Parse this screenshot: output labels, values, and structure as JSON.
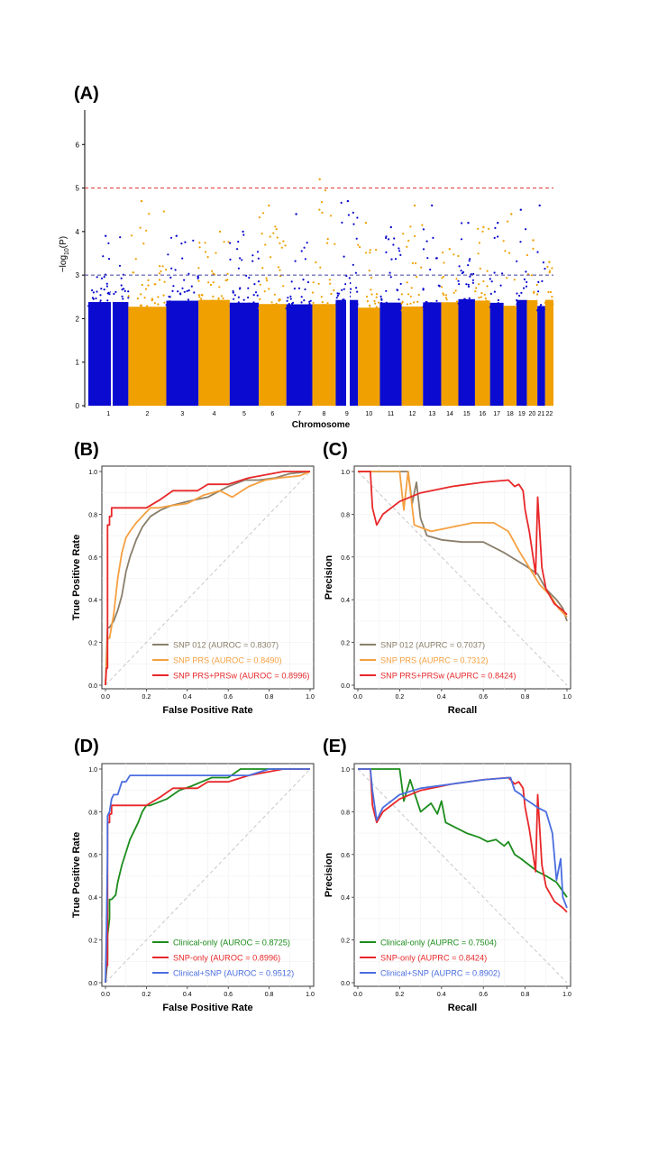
{
  "panel_labels": {
    "a": "(A)",
    "b": "(B)",
    "c": "(C)",
    "d": "(D)",
    "e": "(E)"
  },
  "colors": {
    "blue": "#0a0ad0",
    "orange": "#f0a000",
    "red_threshold": "#e03030",
    "blue_threshold": "#4040a0",
    "grey": "#8a7f6a",
    "light_orange": "#f5a040",
    "red": "#e8282a",
    "green": "#1c8c1c",
    "clinical_blue": "#4a6ee0",
    "diag": "#c8c8c8"
  },
  "chart_data": [
    {
      "type": "scatter",
      "name": "manhattan",
      "xlabel": "Chromosome",
      "ylabel_main": "−log",
      "ylabel_sub": "10",
      "ylabel_tail": "(P)",
      "ylim": [
        0,
        7
      ],
      "yticks": [
        "0",
        "1",
        "2",
        "3",
        "4",
        "5",
        "6"
      ],
      "chromosomes": [
        "1",
        "2",
        "3",
        "4",
        "5",
        "6",
        "7",
        "8",
        "9",
        "10",
        "11",
        "12",
        "13",
        "14",
        "15",
        "16",
        "17",
        "18",
        "19",
        "20",
        "21",
        "22"
      ],
      "chrom_widths": [
        7.7,
        7.3,
        6.2,
        6.0,
        5.6,
        5.3,
        5.0,
        4.5,
        4.3,
        4.2,
        4.2,
        4.1,
        3.5,
        3.3,
        3.2,
        2.9,
        2.6,
        2.5,
        2.0,
        2.0,
        1.5,
        1.6
      ],
      "chrom_colors": [
        "blue",
        "orange"
      ],
      "thresholds": [
        {
          "y": 5,
          "color": "red_threshold"
        },
        {
          "y": 3,
          "color": "blue_threshold"
        }
      ],
      "peaks": [
        {
          "chrom": "1",
          "max": 3.9
        },
        {
          "chrom": "2",
          "max": 4.7
        },
        {
          "chrom": "3",
          "max": 3.9
        },
        {
          "chrom": "4",
          "max": 4.0
        },
        {
          "chrom": "5",
          "max": 4.0
        },
        {
          "chrom": "6",
          "max": 4.6
        },
        {
          "chrom": "7",
          "max": 4.4
        },
        {
          "chrom": "8",
          "max": 5.2
        },
        {
          "chrom": "9",
          "max": 4.7
        },
        {
          "chrom": "10",
          "max": 4.2
        },
        {
          "chrom": "11",
          "max": 4.1
        },
        {
          "chrom": "12",
          "max": 4.6
        },
        {
          "chrom": "13",
          "max": 4.6
        },
        {
          "chrom": "14",
          "max": 3.6
        },
        {
          "chrom": "15",
          "max": 4.2
        },
        {
          "chrom": "16",
          "max": 4.1
        },
        {
          "chrom": "17",
          "max": 4.2
        },
        {
          "chrom": "18",
          "max": 4.4
        },
        {
          "chrom": "19",
          "max": 4.5
        },
        {
          "chrom": "20",
          "max": 3.8
        },
        {
          "chrom": "21",
          "max": 4.6
        },
        {
          "chrom": "22",
          "max": 3.3
        }
      ]
    },
    {
      "type": "line",
      "name": "roc-snp",
      "xlabel": "False Positive Rate",
      "ylabel": "True Positive Rate",
      "xlim": [
        0,
        1
      ],
      "ylim": [
        0,
        1
      ],
      "ticks": [
        "0.0",
        "0.2",
        "0.4",
        "0.6",
        "0.8",
        "1.0"
      ],
      "diagonal": "roc",
      "legend_position": "bottom-right",
      "series": [
        {
          "name": "SNP 012 (AUROC = 0.8307)",
          "color": "grey",
          "x": [
            0,
            0.01,
            0.02,
            0.04,
            0.06,
            0.08,
            0.1,
            0.12,
            0.15,
            0.18,
            0.22,
            0.27,
            0.32,
            0.4,
            0.5,
            0.6,
            0.68,
            0.75,
            0.83,
            0.9,
            1.0
          ],
          "y": [
            0,
            0.27,
            0.27,
            0.3,
            0.35,
            0.42,
            0.53,
            0.6,
            0.68,
            0.74,
            0.79,
            0.82,
            0.84,
            0.86,
            0.88,
            0.93,
            0.96,
            0.96,
            0.97,
            0.99,
            1.0
          ]
        },
        {
          "name": "SNP PRS (AUROC = 0.8490)",
          "color": "light_orange",
          "x": [
            0,
            0.01,
            0.02,
            0.04,
            0.06,
            0.08,
            0.1,
            0.12,
            0.15,
            0.18,
            0.22,
            0.26,
            0.32,
            0.4,
            0.48,
            0.56,
            0.62,
            0.7,
            0.78,
            0.85,
            0.95,
            1.0
          ],
          "y": [
            0,
            0.22,
            0.22,
            0.33,
            0.5,
            0.62,
            0.69,
            0.72,
            0.76,
            0.79,
            0.83,
            0.83,
            0.84,
            0.85,
            0.89,
            0.91,
            0.88,
            0.93,
            0.96,
            0.97,
            0.98,
            1.0
          ]
        },
        {
          "name": "SNP PRS+PRSw (AUROC = 0.8996)",
          "color": "red",
          "x": [
            0,
            0.005,
            0.01,
            0.01,
            0.02,
            0.02,
            0.03,
            0.03,
            0.1,
            0.2,
            0.27,
            0.33,
            0.45,
            0.5,
            0.6,
            0.7,
            0.87,
            1.0
          ],
          "y": [
            0,
            0.08,
            0.08,
            0.75,
            0.75,
            0.79,
            0.79,
            0.83,
            0.83,
            0.83,
            0.87,
            0.91,
            0.91,
            0.94,
            0.94,
            0.97,
            1.0,
            1.0
          ]
        }
      ]
    },
    {
      "type": "line",
      "name": "pr-snp",
      "xlabel": "Recall",
      "ylabel": "Precision",
      "xlim": [
        0,
        1
      ],
      "ylim": [
        0,
        1
      ],
      "ticks": [
        "0.0",
        "0.2",
        "0.4",
        "0.6",
        "0.8",
        "1.0"
      ],
      "diagonal": "pr",
      "legend_position": "bottom-left",
      "series": [
        {
          "name": "SNP 012 (AUPRC = 0.7037)",
          "color": "grey",
          "x": [
            0,
            0.24,
            0.26,
            0.28,
            0.3,
            0.33,
            0.4,
            0.5,
            0.6,
            0.7,
            0.8,
            0.86,
            0.9,
            0.95,
            0.98,
            1.0
          ],
          "y": [
            1.0,
            1.0,
            0.85,
            0.95,
            0.78,
            0.7,
            0.68,
            0.67,
            0.67,
            0.62,
            0.56,
            0.52,
            0.45,
            0.4,
            0.36,
            0.3
          ]
        },
        {
          "name": "SNP PRS (AUPRC = 0.7312)",
          "color": "light_orange",
          "x": [
            0,
            0.2,
            0.22,
            0.24,
            0.27,
            0.35,
            0.45,
            0.55,
            0.65,
            0.72,
            0.77,
            0.82,
            0.87,
            0.92,
            0.96,
            1.0
          ],
          "y": [
            1.0,
            1.0,
            0.82,
            1.0,
            0.75,
            0.72,
            0.74,
            0.76,
            0.76,
            0.72,
            0.63,
            0.55,
            0.47,
            0.42,
            0.36,
            0.32
          ]
        },
        {
          "name": "SNP PRS+PRSw (AUPRC = 0.8424)",
          "color": "red",
          "x": [
            0,
            0.06,
            0.07,
            0.09,
            0.12,
            0.2,
            0.3,
            0.45,
            0.6,
            0.72,
            0.75,
            0.77,
            0.79,
            0.8,
            0.82,
            0.85,
            0.86,
            0.88,
            0.9,
            0.94,
            0.98,
            1.0
          ],
          "y": [
            1.0,
            1.0,
            0.83,
            0.75,
            0.8,
            0.86,
            0.9,
            0.93,
            0.95,
            0.96,
            0.93,
            0.94,
            0.91,
            0.82,
            0.72,
            0.52,
            0.88,
            0.55,
            0.45,
            0.38,
            0.35,
            0.33
          ]
        }
      ]
    },
    {
      "type": "line",
      "name": "roc-clinical",
      "xlabel": "False Positive Rate",
      "ylabel": "True Positive Rate",
      "xlim": [
        0,
        1
      ],
      "ylim": [
        0,
        1
      ],
      "ticks": [
        "0.0",
        "0.2",
        "0.4",
        "0.6",
        "0.8",
        "1.0"
      ],
      "diagonal": "roc",
      "legend_position": "bottom-right",
      "series": [
        {
          "name": "Clinical-only (AUROC = 0.8725)",
          "color": "green",
          "x": [
            0,
            0.01,
            0.01,
            0.02,
            0.02,
            0.03,
            0.05,
            0.06,
            0.08,
            0.1,
            0.12,
            0.14,
            0.16,
            0.18,
            0.2,
            0.22,
            0.3,
            0.36,
            0.42,
            0.47,
            0.52,
            0.6,
            0.66,
            0.72,
            0.8,
            0.88,
            1.0
          ],
          "y": [
            0,
            0.11,
            0.22,
            0.3,
            0.39,
            0.39,
            0.41,
            0.47,
            0.55,
            0.61,
            0.67,
            0.71,
            0.75,
            0.8,
            0.83,
            0.83,
            0.86,
            0.9,
            0.92,
            0.94,
            0.96,
            0.96,
            1.0,
            1.0,
            1.0,
            1.0,
            1.0
          ]
        },
        {
          "name": "SNP-only (AUROC = 0.8996)",
          "color": "red",
          "x": [
            0,
            0.005,
            0.01,
            0.01,
            0.02,
            0.02,
            0.03,
            0.03,
            0.1,
            0.2,
            0.27,
            0.33,
            0.45,
            0.5,
            0.6,
            0.7,
            0.87,
            1.0
          ],
          "y": [
            0,
            0.08,
            0.08,
            0.75,
            0.75,
            0.79,
            0.79,
            0.83,
            0.83,
            0.83,
            0.87,
            0.91,
            0.91,
            0.94,
            0.94,
            0.97,
            1.0,
            1.0
          ]
        },
        {
          "name": "Clinical+SNP (AUROC = 0.9512)",
          "color": "clinical_blue",
          "x": [
            0,
            0.005,
            0.01,
            0.01,
            0.02,
            0.03,
            0.04,
            0.06,
            0.08,
            0.1,
            0.12,
            0.2,
            0.4,
            0.6,
            0.7,
            0.8,
            1.0
          ],
          "y": [
            0,
            0.25,
            0.6,
            0.78,
            0.8,
            0.86,
            0.88,
            0.88,
            0.94,
            0.94,
            0.97,
            0.97,
            0.97,
            0.97,
            0.97,
            1.0,
            1.0
          ]
        }
      ]
    },
    {
      "type": "line",
      "name": "pr-clinical",
      "xlabel": "Recall",
      "ylabel": "Precision",
      "xlim": [
        0,
        1
      ],
      "ylim": [
        0,
        1
      ],
      "ticks": [
        "0.0",
        "0.2",
        "0.4",
        "0.6",
        "0.8",
        "1.0"
      ],
      "diagonal": "pr",
      "legend_position": "bottom-left",
      "series": [
        {
          "name": "Clinical-only (AUPRC = 0.7504)",
          "color": "green",
          "x": [
            0,
            0.2,
            0.22,
            0.25,
            0.3,
            0.35,
            0.38,
            0.4,
            0.42,
            0.48,
            0.52,
            0.58,
            0.62,
            0.66,
            0.7,
            0.72,
            0.75,
            0.78,
            0.82,
            0.86,
            0.9,
            0.95,
            1.0
          ],
          "y": [
            1.0,
            1.0,
            0.85,
            0.95,
            0.8,
            0.84,
            0.79,
            0.85,
            0.75,
            0.72,
            0.7,
            0.68,
            0.66,
            0.67,
            0.64,
            0.66,
            0.6,
            0.58,
            0.55,
            0.52,
            0.5,
            0.47,
            0.4
          ]
        },
        {
          "name": "SNP-only (AUPRC = 0.8424)",
          "color": "red",
          "x": [
            0,
            0.06,
            0.07,
            0.09,
            0.12,
            0.2,
            0.3,
            0.45,
            0.6,
            0.72,
            0.75,
            0.77,
            0.79,
            0.8,
            0.82,
            0.85,
            0.86,
            0.88,
            0.9,
            0.94,
            0.98,
            1.0
          ],
          "y": [
            1.0,
            1.0,
            0.83,
            0.75,
            0.8,
            0.86,
            0.9,
            0.93,
            0.95,
            0.96,
            0.93,
            0.94,
            0.91,
            0.82,
            0.72,
            0.52,
            0.88,
            0.55,
            0.45,
            0.38,
            0.35,
            0.33
          ]
        },
        {
          "name": "Clinical+SNP (AUPRC = 0.8902)",
          "color": "clinical_blue",
          "x": [
            0,
            0.06,
            0.07,
            0.09,
            0.12,
            0.2,
            0.3,
            0.45,
            0.6,
            0.73,
            0.75,
            0.78,
            0.8,
            0.83,
            0.86,
            0.9,
            0.93,
            0.95,
            0.97,
            0.98,
            1.0
          ],
          "y": [
            1.0,
            1.0,
            0.9,
            0.76,
            0.82,
            0.88,
            0.91,
            0.93,
            0.95,
            0.96,
            0.9,
            0.88,
            0.86,
            0.84,
            0.82,
            0.8,
            0.7,
            0.48,
            0.58,
            0.4,
            0.35
          ]
        }
      ]
    }
  ]
}
